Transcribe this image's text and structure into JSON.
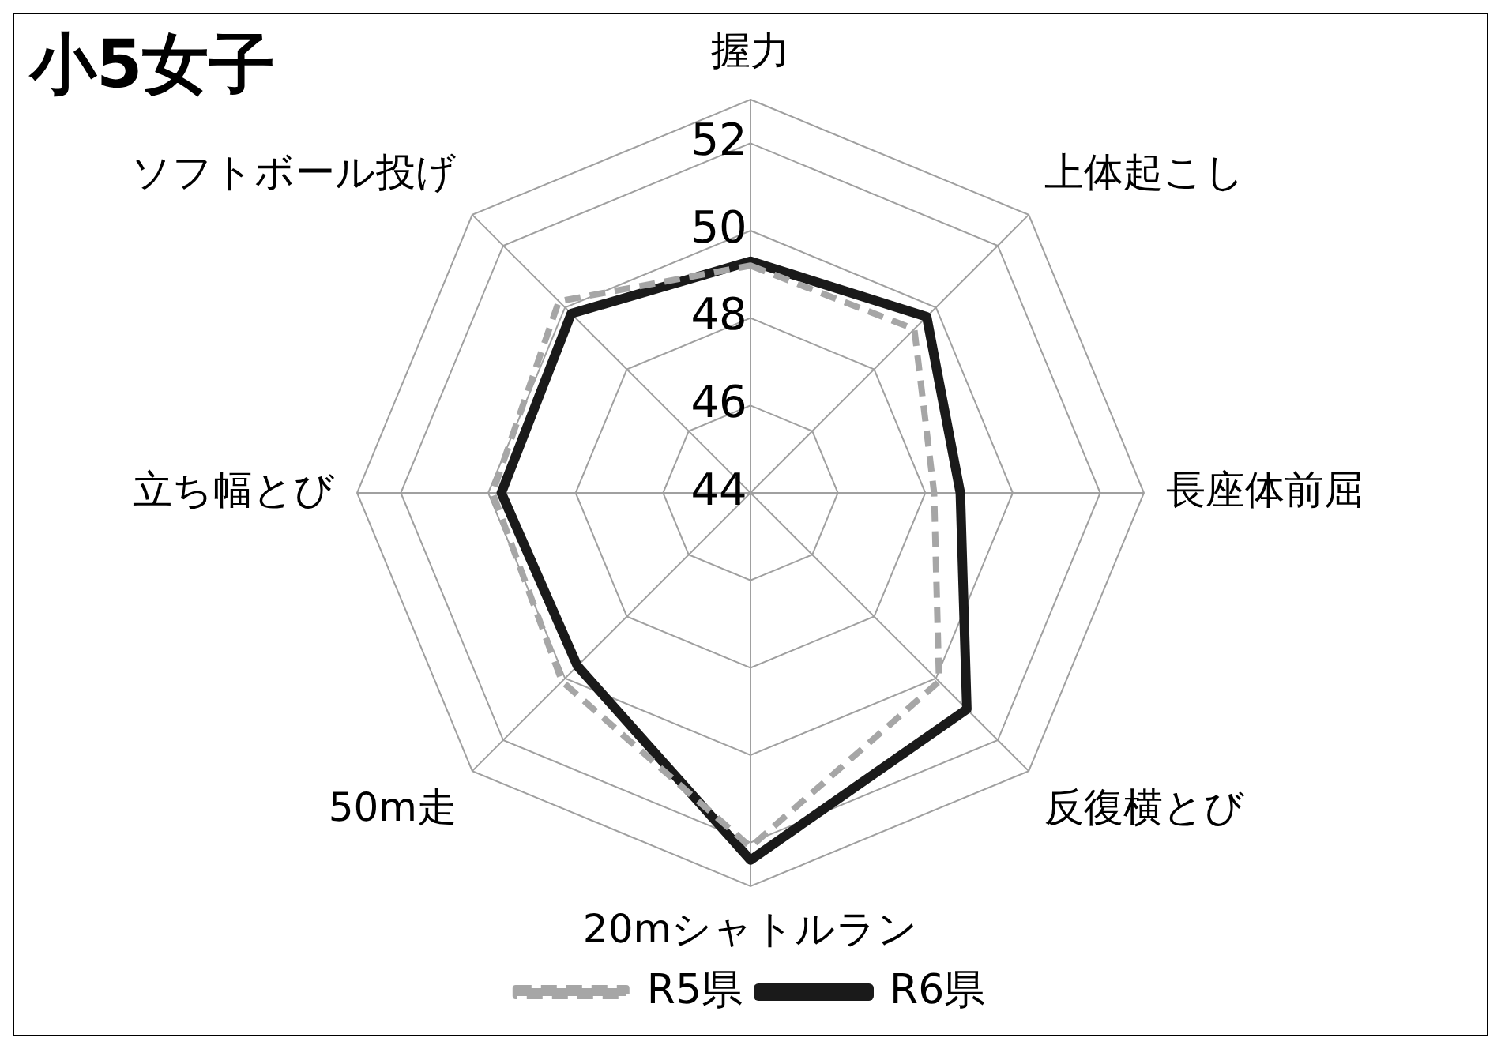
{
  "chart_data": {
    "type": "radar",
    "title": "小5女子",
    "categories": [
      "握力",
      "上体起こし",
      "長座体前屈",
      "反復横とび",
      "20mシャトルラン",
      "50m走",
      "立ち幅とび",
      "ソフトボール投げ"
    ],
    "series": [
      {
        "name": "R5県",
        "color": "#a6a6a6",
        "line_style": "dashed",
        "values": [
          49.2,
          49.3,
          48.2,
          50.1,
          52.1,
          50.1,
          49.9,
          50.2
        ]
      },
      {
        "name": "R6県",
        "color": "#1a1a1a",
        "line_style": "solid",
        "values": [
          49.3,
          49.7,
          48.8,
          51.0,
          52.4,
          49.6,
          49.7,
          49.8
        ]
      }
    ],
    "ylim": [
      44,
      53
    ],
    "yticks": [
      44,
      46,
      48,
      50,
      52
    ],
    "grid": true,
    "legend": "bottom",
    "marker": "none"
  }
}
